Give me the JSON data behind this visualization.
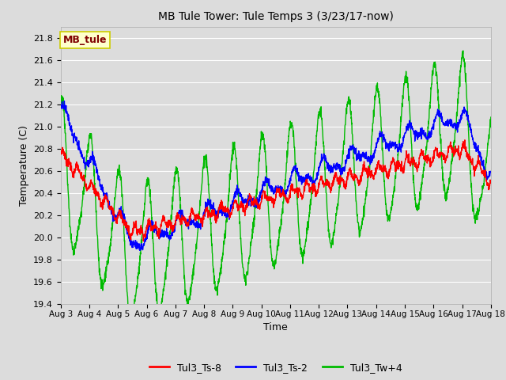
{
  "title": "MB Tule Tower: Tule Temps 3 (3/23/17-now)",
  "xlabel": "Time",
  "ylabel": "Temperature (C)",
  "ylim": [
    19.4,
    21.9
  ],
  "yticks": [
    19.4,
    19.6,
    19.8,
    20.0,
    20.2,
    20.4,
    20.6,
    20.8,
    21.0,
    21.2,
    21.4,
    21.6,
    21.8
  ],
  "x_tick_labels": [
    "Aug 3",
    "Aug 4",
    "Aug 5",
    "Aug 6",
    "Aug 7",
    "Aug 8",
    "Aug 9",
    "Aug 10",
    "Aug 11",
    "Aug 12",
    "Aug 13",
    "Aug 14",
    "Aug 15",
    "Aug 16",
    "Aug 17",
    "Aug 18"
  ],
  "bg_color": "#dcdcdc",
  "plot_bg_color": "#dcdcdc",
  "grid_color": "#ffffff",
  "legend_label": "MB_tule",
  "legend_box_color": "#ffffcc",
  "legend_border_color": "#cccc00",
  "legend_text_color": "#800000",
  "series_labels": [
    "Tul3_Ts-8",
    "Tul3_Ts-2",
    "Tul3_Tw+4"
  ],
  "series_colors": [
    "#ff0000",
    "#0000ff",
    "#00bb00"
  ],
  "line_width": 1.0
}
